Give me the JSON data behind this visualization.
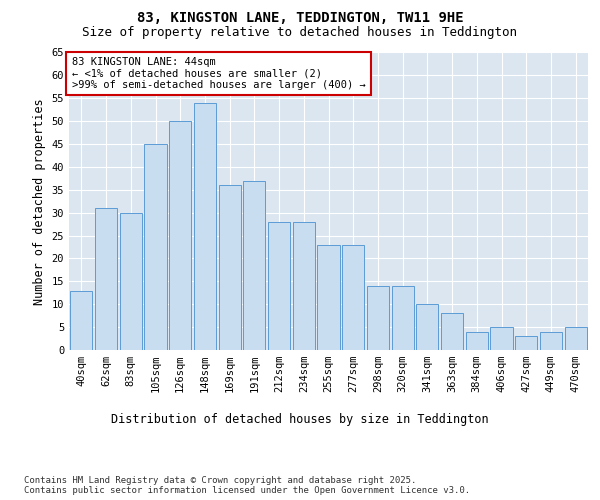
{
  "title": "83, KINGSTON LANE, TEDDINGTON, TW11 9HE",
  "subtitle": "Size of property relative to detached houses in Teddington",
  "xlabel": "Distribution of detached houses by size in Teddington",
  "ylabel": "Number of detached properties",
  "categories": [
    "40sqm",
    "62sqm",
    "83sqm",
    "105sqm",
    "126sqm",
    "148sqm",
    "169sqm",
    "191sqm",
    "212sqm",
    "234sqm",
    "255sqm",
    "277sqm",
    "298sqm",
    "320sqm",
    "341sqm",
    "363sqm",
    "384sqm",
    "406sqm",
    "427sqm",
    "449sqm",
    "470sqm"
  ],
  "values": [
    13,
    31,
    30,
    45,
    50,
    54,
    36,
    37,
    28,
    28,
    23,
    23,
    14,
    14,
    10,
    8,
    4,
    5,
    3,
    4,
    5
  ],
  "bar_color": "#c9ddf0",
  "bar_edge_color": "#5b9bd5",
  "background_color": "#dce6f1",
  "ylim": [
    0,
    65
  ],
  "yticks": [
    0,
    5,
    10,
    15,
    20,
    25,
    30,
    35,
    40,
    45,
    50,
    55,
    60,
    65
  ],
  "annotation_box_text": "83 KINGSTON LANE: 44sqm\n← <1% of detached houses are smaller (2)\n>99% of semi-detached houses are larger (400) →",
  "annotation_box_color": "#ffffff",
  "annotation_box_edge_color": "#cc0000",
  "footnote": "Contains HM Land Registry data © Crown copyright and database right 2025.\nContains public sector information licensed under the Open Government Licence v3.0.",
  "title_fontsize": 10,
  "subtitle_fontsize": 9,
  "xlabel_fontsize": 8.5,
  "ylabel_fontsize": 8.5,
  "tick_fontsize": 7.5,
  "annotation_fontsize": 7.5,
  "footnote_fontsize": 6.5
}
